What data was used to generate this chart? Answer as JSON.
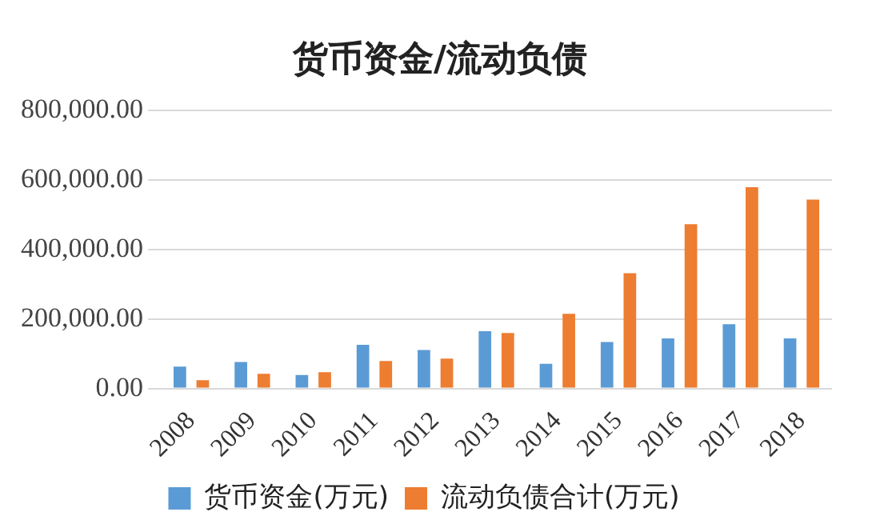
{
  "chart_data": {
    "type": "bar",
    "title": "货币资金/流动负债",
    "categories": [
      "2008",
      "2009",
      "2010",
      "2011",
      "2012",
      "2013",
      "2014",
      "2015",
      "2016",
      "2017",
      "2018"
    ],
    "series": [
      {
        "name": "货币资金(万元)",
        "color": "#5b9bd5",
        "values": [
          63000,
          76000,
          39000,
          126000,
          111000,
          165000,
          71000,
          134000,
          144000,
          185000,
          144000
        ]
      },
      {
        "name": "流动负债合计(万元)",
        "color": "#ed7d31",
        "values": [
          24000,
          42000,
          47000,
          79000,
          86000,
          160000,
          215000,
          332000,
          473000,
          580000,
          544000
        ]
      }
    ],
    "ylim": [
      0,
      800000
    ],
    "yticks": [
      {
        "value": 0,
        "label": "0.00"
      },
      {
        "value": 200000,
        "label": "200,000.00"
      },
      {
        "value": 400000,
        "label": "400,000.00"
      },
      {
        "value": 600000,
        "label": "600,000.00"
      },
      {
        "value": 800000,
        "label": "800,000.00"
      }
    ],
    "grid": "y",
    "legend": "bottom"
  }
}
